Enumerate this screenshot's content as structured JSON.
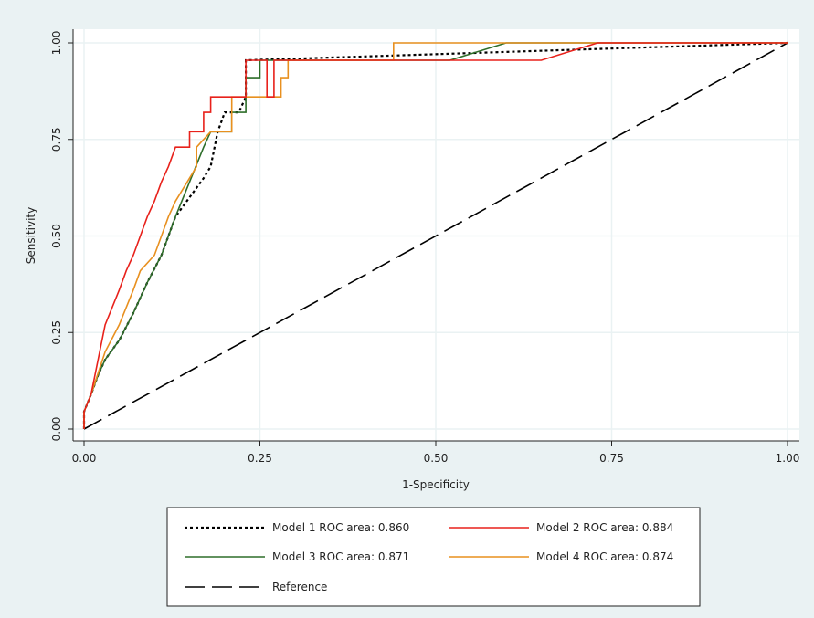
{
  "chart_data": {
    "type": "line",
    "title": "",
    "xlabel": "1-Specificity",
    "ylabel": "Sensitivity",
    "xlim": [
      0,
      1
    ],
    "ylim": [
      0,
      1
    ],
    "xticks": [
      "0.00",
      "0.25",
      "0.50",
      "0.75",
      "1.00"
    ],
    "yticks": [
      "0.00",
      "0.25",
      "0.50",
      "0.75",
      "1.00"
    ],
    "grid": true,
    "legend_position": "bottom",
    "colors": {
      "background": "#eaf2f3",
      "plot_bg": "#ffffff",
      "grid": "#eaf2f3",
      "model1": "#000000",
      "model2": "#e8211b",
      "model3": "#2e6e2a",
      "model4": "#e8901f",
      "reference": "#000000"
    },
    "series": [
      {
        "name": "Model 1 ROC area: 0.860",
        "style": "dotted",
        "points": [
          [
            0,
            0
          ],
          [
            0,
            0.045
          ],
          [
            0.01,
            0.09
          ],
          [
            0.02,
            0.14
          ],
          [
            0.03,
            0.18
          ],
          [
            0.05,
            0.23
          ],
          [
            0.07,
            0.3
          ],
          [
            0.09,
            0.38
          ],
          [
            0.11,
            0.45
          ],
          [
            0.13,
            0.55
          ],
          [
            0.15,
            0.6
          ],
          [
            0.17,
            0.65
          ],
          [
            0.18,
            0.68
          ],
          [
            0.19,
            0.77
          ],
          [
            0.2,
            0.82
          ],
          [
            0.22,
            0.82
          ],
          [
            0.23,
            0.86
          ],
          [
            0.23,
            0.955
          ],
          [
            1,
            1
          ]
        ]
      },
      {
        "name": "Model 2 ROC area: 0.884",
        "style": "solid",
        "points": [
          [
            0,
            0
          ],
          [
            0,
            0.045
          ],
          [
            0.01,
            0.09
          ],
          [
            0.03,
            0.27
          ],
          [
            0.05,
            0.36
          ],
          [
            0.06,
            0.41
          ],
          [
            0.07,
            0.45
          ],
          [
            0.08,
            0.5
          ],
          [
            0.09,
            0.55
          ],
          [
            0.1,
            0.59
          ],
          [
            0.11,
            0.64
          ],
          [
            0.12,
            0.68
          ],
          [
            0.13,
            0.73
          ],
          [
            0.15,
            0.73
          ],
          [
            0.15,
            0.77
          ],
          [
            0.17,
            0.77
          ],
          [
            0.17,
            0.82
          ],
          [
            0.18,
            0.82
          ],
          [
            0.18,
            0.86
          ],
          [
            0.23,
            0.86
          ],
          [
            0.23,
            0.955
          ],
          [
            0.26,
            0.955
          ],
          [
            0.26,
            0.86
          ],
          [
            0.27,
            0.86
          ],
          [
            0.27,
            0.955
          ],
          [
            0.65,
            0.955
          ],
          [
            0.73,
            1
          ],
          [
            1,
            1
          ]
        ]
      },
      {
        "name": "Model 3 ROC area: 0.871",
        "style": "solid",
        "points": [
          [
            0,
            0
          ],
          [
            0,
            0.045
          ],
          [
            0.01,
            0.09
          ],
          [
            0.02,
            0.14
          ],
          [
            0.03,
            0.18
          ],
          [
            0.05,
            0.23
          ],
          [
            0.07,
            0.3
          ],
          [
            0.09,
            0.38
          ],
          [
            0.11,
            0.45
          ],
          [
            0.13,
            0.55
          ],
          [
            0.15,
            0.64
          ],
          [
            0.17,
            0.73
          ],
          [
            0.18,
            0.77
          ],
          [
            0.21,
            0.77
          ],
          [
            0.21,
            0.82
          ],
          [
            0.23,
            0.82
          ],
          [
            0.23,
            0.91
          ],
          [
            0.25,
            0.91
          ],
          [
            0.25,
            0.955
          ],
          [
            0.52,
            0.955
          ],
          [
            0.6,
            1
          ],
          [
            1,
            1
          ]
        ]
      },
      {
        "name": "Model 4 ROC area: 0.874",
        "style": "solid",
        "points": [
          [
            0,
            0
          ],
          [
            0,
            0.045
          ],
          [
            0.01,
            0.09
          ],
          [
            0.03,
            0.2
          ],
          [
            0.05,
            0.27
          ],
          [
            0.07,
            0.36
          ],
          [
            0.08,
            0.41
          ],
          [
            0.1,
            0.45
          ],
          [
            0.11,
            0.5
          ],
          [
            0.12,
            0.55
          ],
          [
            0.13,
            0.59
          ],
          [
            0.16,
            0.68
          ],
          [
            0.16,
            0.73
          ],
          [
            0.18,
            0.77
          ],
          [
            0.21,
            0.77
          ],
          [
            0.21,
            0.82
          ],
          [
            0.21,
            0.86
          ],
          [
            0.28,
            0.86
          ],
          [
            0.28,
            0.91
          ],
          [
            0.29,
            0.91
          ],
          [
            0.29,
            0.955
          ],
          [
            0.44,
            0.955
          ],
          [
            0.44,
            1
          ],
          [
            1,
            1
          ]
        ]
      },
      {
        "name": "Reference",
        "style": "longdash",
        "points": [
          [
            0,
            0
          ],
          [
            1,
            1
          ]
        ]
      }
    ]
  }
}
